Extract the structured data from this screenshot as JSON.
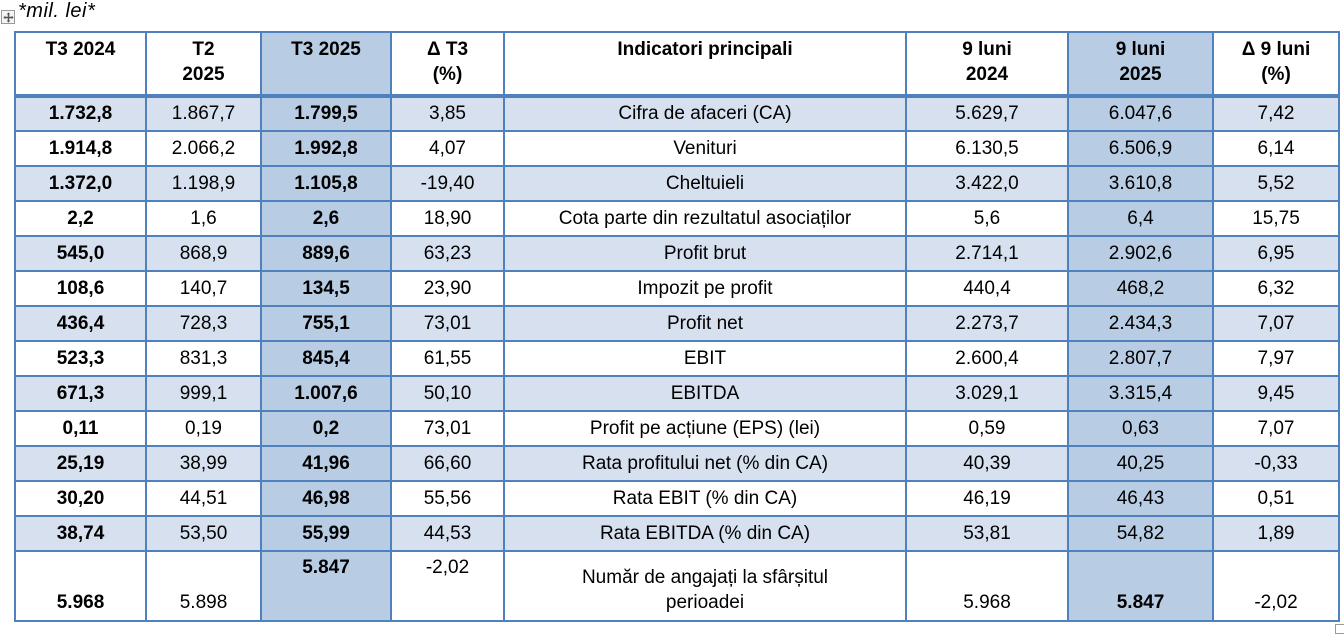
{
  "note": "*mil. lei*",
  "colors": {
    "accent_border": "#4F81BD",
    "row_shade": "#D6E0EF",
    "column_highlight": "#B8CCE4",
    "page_bg": "#FFFFFF",
    "text_color": "#000000"
  },
  "icons": {
    "move_handle": "table-move-icon",
    "resize_handle": "table-resize-icon"
  },
  "table": {
    "columns": [
      {
        "id": "t3_2024",
        "label": "T3 2024",
        "highlight": false
      },
      {
        "id": "t2_2025",
        "label": "T2\n2025",
        "highlight": false
      },
      {
        "id": "t3_2025",
        "label": "T3 2025",
        "highlight": true
      },
      {
        "id": "d_t3",
        "label": "Δ T3\n(%)",
        "highlight": false
      },
      {
        "id": "indicator",
        "label": "Indicatori principali",
        "highlight": false
      },
      {
        "id": "m9_2024",
        "label": "9 luni\n2024",
        "highlight": false
      },
      {
        "id": "m9_2025",
        "label": "9 luni\n2025",
        "highlight": true
      },
      {
        "id": "d_9",
        "label": "Δ 9 luni\n(%)",
        "highlight": false
      }
    ],
    "rows": [
      {
        "t3_2024": "1.732,8",
        "t2_2025": "1.867,7",
        "t3_2025": "1.799,5",
        "d_t3": "3,85",
        "indicator": "Cifra de afaceri (CA)",
        "m9_2024": "5.629,7",
        "m9_2025": "6.047,6",
        "d_9": "7,42"
      },
      {
        "t3_2024": "1.914,8",
        "t2_2025": "2.066,2",
        "t3_2025": "1.992,8",
        "d_t3": "4,07",
        "indicator": "Venituri",
        "m9_2024": "6.130,5",
        "m9_2025": "6.506,9",
        "d_9": "6,14"
      },
      {
        "t3_2024": "1.372,0",
        "t2_2025": "1.198,9",
        "t3_2025": "1.105,8",
        "d_t3": "-19,40",
        "indicator": "Cheltuieli",
        "m9_2024": "3.422,0",
        "m9_2025": "3.610,8",
        "d_9": "5,52"
      },
      {
        "t3_2024": "2,2",
        "t2_2025": "1,6",
        "t3_2025": "2,6",
        "d_t3": "18,90",
        "indicator": "Cota parte din rezultatul asociaților",
        "m9_2024": "5,6",
        "m9_2025": "6,4",
        "d_9": "15,75"
      },
      {
        "t3_2024": "545,0",
        "t2_2025": "868,9",
        "t3_2025": "889,6",
        "d_t3": "63,23",
        "indicator": "Profit brut",
        "m9_2024": "2.714,1",
        "m9_2025": "2.902,6",
        "d_9": "6,95"
      },
      {
        "t3_2024": "108,6",
        "t2_2025": "140,7",
        "t3_2025": "134,5",
        "d_t3": "23,90",
        "indicator": "Impozit pe profit",
        "m9_2024": "440,4",
        "m9_2025": "468,2",
        "d_9": "6,32"
      },
      {
        "t3_2024": "436,4",
        "t2_2025": "728,3",
        "t3_2025": "755,1",
        "d_t3": "73,01",
        "indicator": "Profit net",
        "m9_2024": "2.273,7",
        "m9_2025": "2.434,3",
        "d_9": "7,07"
      },
      {
        "t3_2024": "523,3",
        "t2_2025": "831,3",
        "t3_2025": "845,4",
        "d_t3": "61,55",
        "indicator": "EBIT",
        "m9_2024": "2.600,4",
        "m9_2025": "2.807,7",
        "d_9": "7,97"
      },
      {
        "t3_2024": "671,3",
        "t2_2025": "999,1",
        "t3_2025": "1.007,6",
        "d_t3": "50,10",
        "indicator": "EBITDA",
        "m9_2024": "3.029,1",
        "m9_2025": "3.315,4",
        "d_9": "9,45"
      },
      {
        "t3_2024": "0,11",
        "t2_2025": "0,19",
        "t3_2025": "0,2",
        "d_t3": "73,01",
        "indicator": "Profit pe acțiune (EPS) (lei)",
        "m9_2024": "0,59",
        "m9_2025": "0,63",
        "d_9": "7,07"
      },
      {
        "t3_2024": "25,19",
        "t2_2025": "38,99",
        "t3_2025": "41,96",
        "d_t3": "66,60",
        "indicator": "Rata profitului net (% din CA)",
        "m9_2024": "40,39",
        "m9_2025": "40,25",
        "d_9": "-0,33"
      },
      {
        "t3_2024": "30,20",
        "t2_2025": "44,51",
        "t3_2025": "46,98",
        "d_t3": "55,56",
        "indicator": "Rata EBIT (% din CA)",
        "m9_2024": "46,19",
        "m9_2025": "46,43",
        "d_9": "0,51"
      },
      {
        "t3_2024": "38,74",
        "t2_2025": "53,50",
        "t3_2025": "55,99",
        "d_t3": "44,53",
        "indicator": "Rata EBITDA (% din CA)",
        "m9_2024": "53,81",
        "m9_2025": "54,82",
        "d_9": "1,89"
      },
      {
        "t3_2024": "5.968",
        "t2_2025": "5.898",
        "t3_2025": "5.847",
        "d_t3": "-2,02",
        "indicator": "Număr de angajați la sfârșitul\nperioadei",
        "m9_2024": "5.968",
        "m9_2025": "5.847",
        "d_9": "-2,02"
      }
    ]
  }
}
